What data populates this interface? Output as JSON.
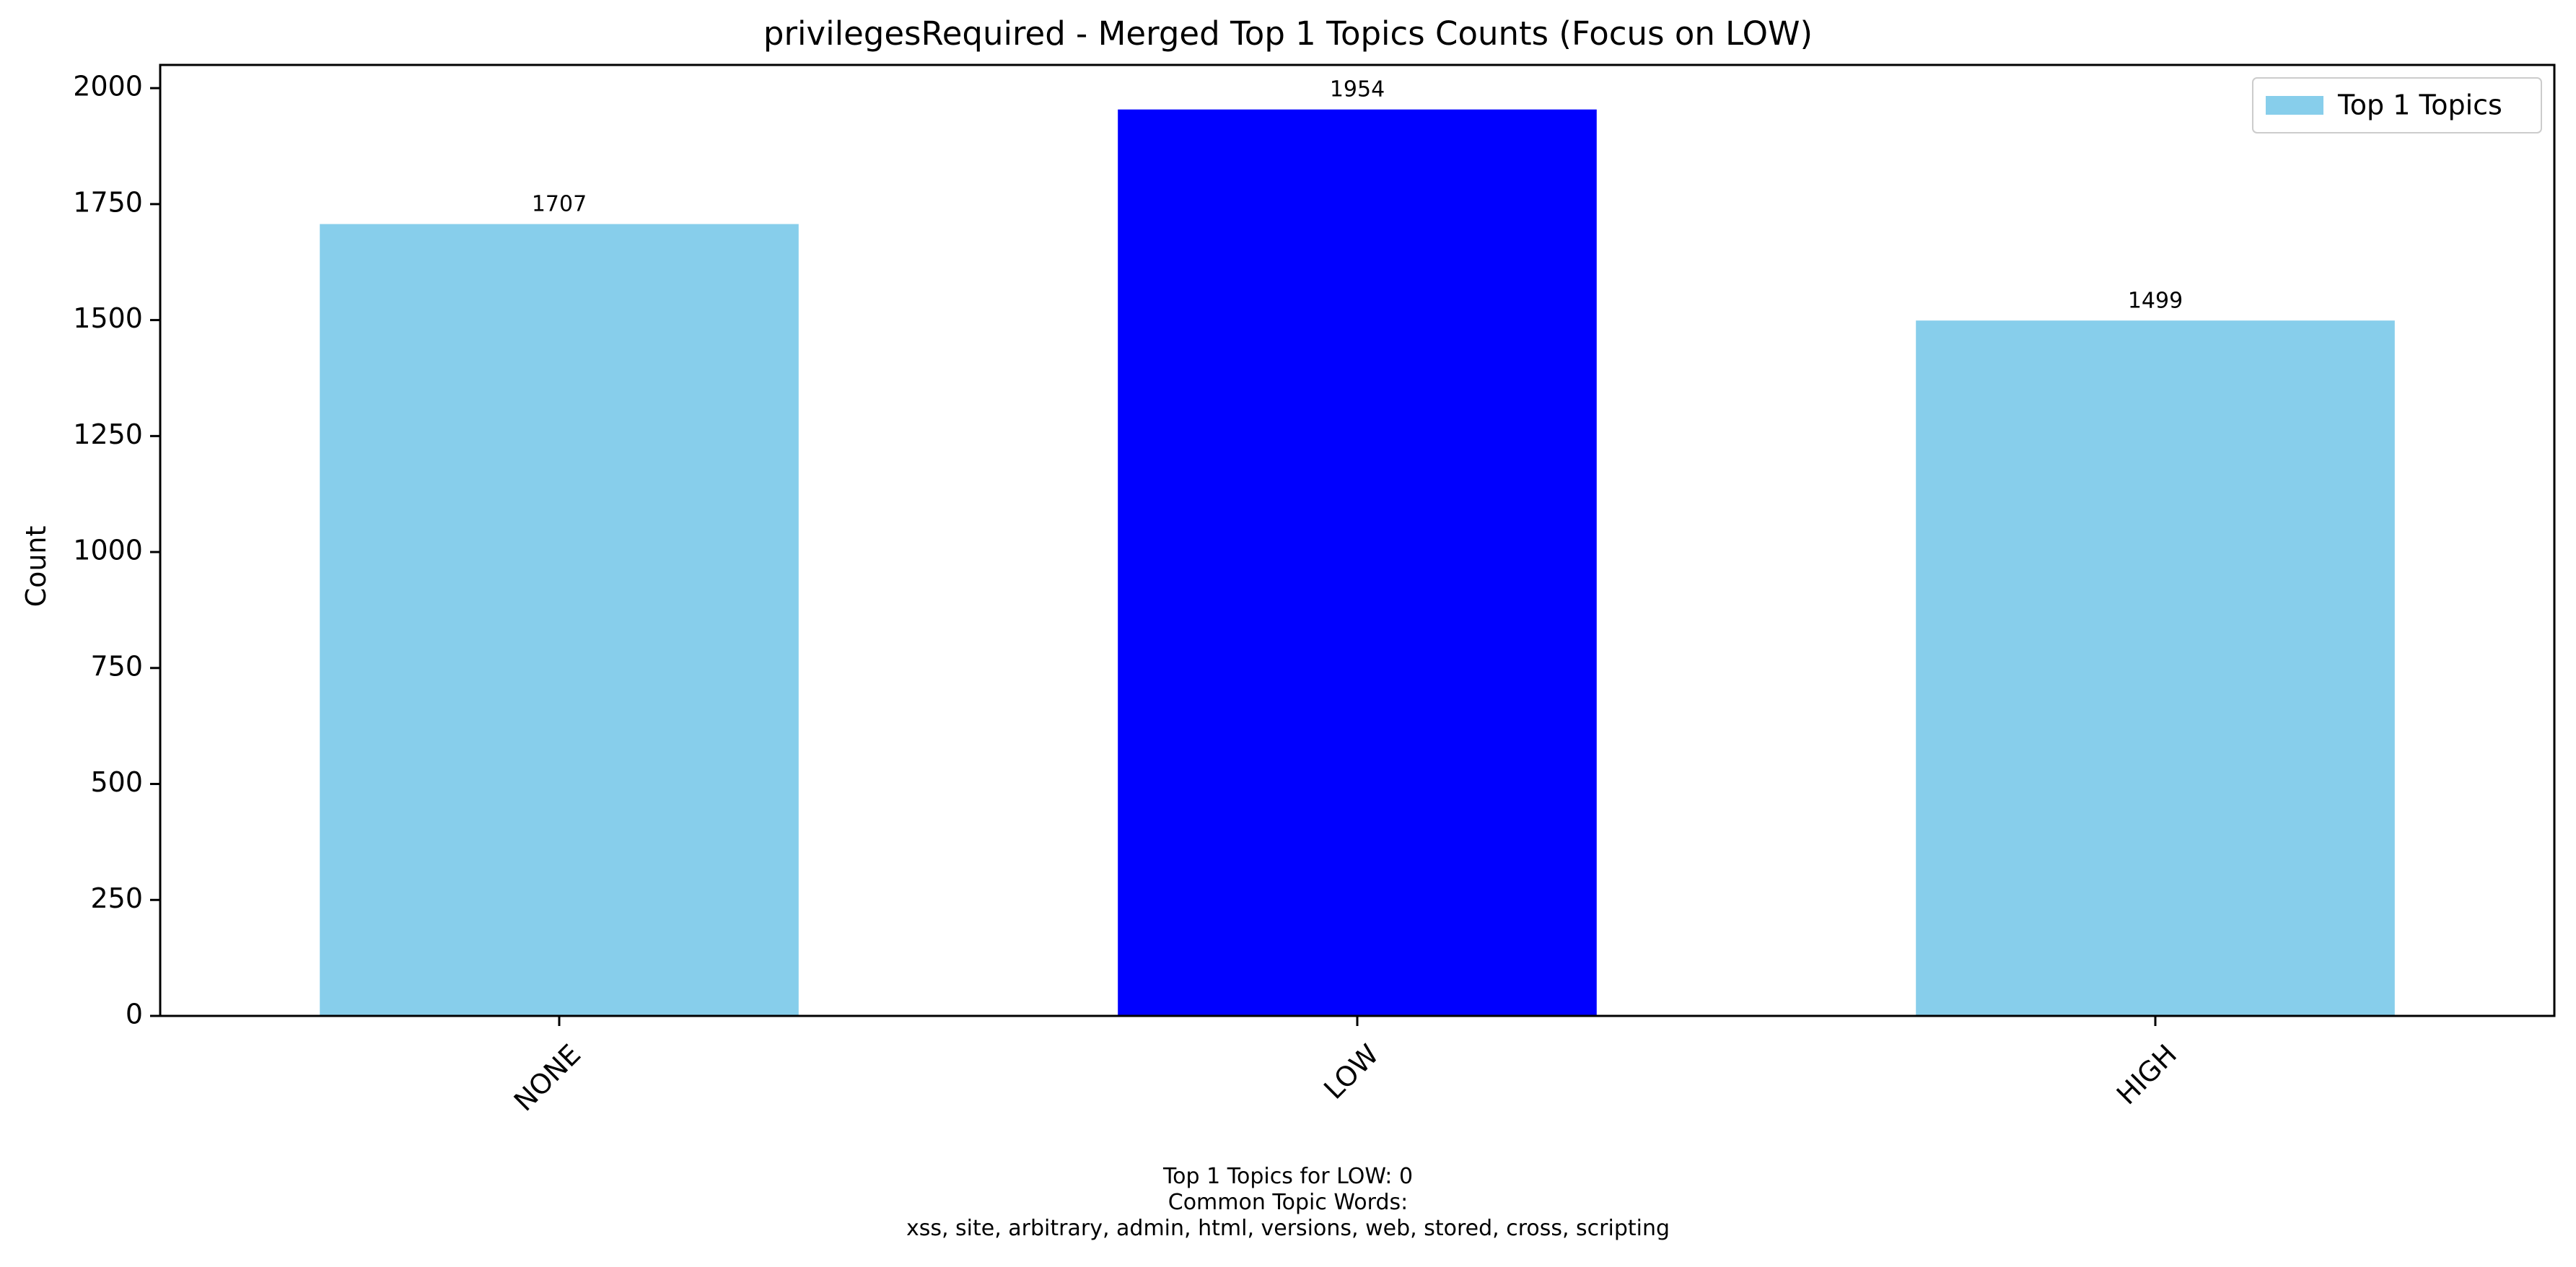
{
  "chart_data": {
    "type": "bar",
    "title": "privilegesRequired - Merged Top 1 Topics Counts (Focus on LOW)",
    "xlabel": "",
    "ylabel": "Count",
    "categories": [
      "NONE",
      "LOW",
      "HIGH"
    ],
    "series": [
      {
        "name": "Top 1 Topics",
        "values": [
          1707,
          1954,
          1499
        ]
      }
    ],
    "highlight_category": "LOW",
    "colors": {
      "default": "#87ceeb",
      "highlight": "#0000ff"
    },
    "ylim": [
      0,
      2050
    ],
    "yticks": [
      0,
      250,
      500,
      750,
      1000,
      1250,
      1500,
      1750,
      2000
    ],
    "legend": {
      "placement": "top-right",
      "label": "Top 1 Topics"
    },
    "grid": false,
    "annotation": {
      "line1": "Top 1 Topics for LOW: 0",
      "line2": "Common Topic Words:",
      "line3": "xss,  site,  arbitrary,  admin,  html,  versions,  web,  stored,  cross,  scripting"
    }
  }
}
